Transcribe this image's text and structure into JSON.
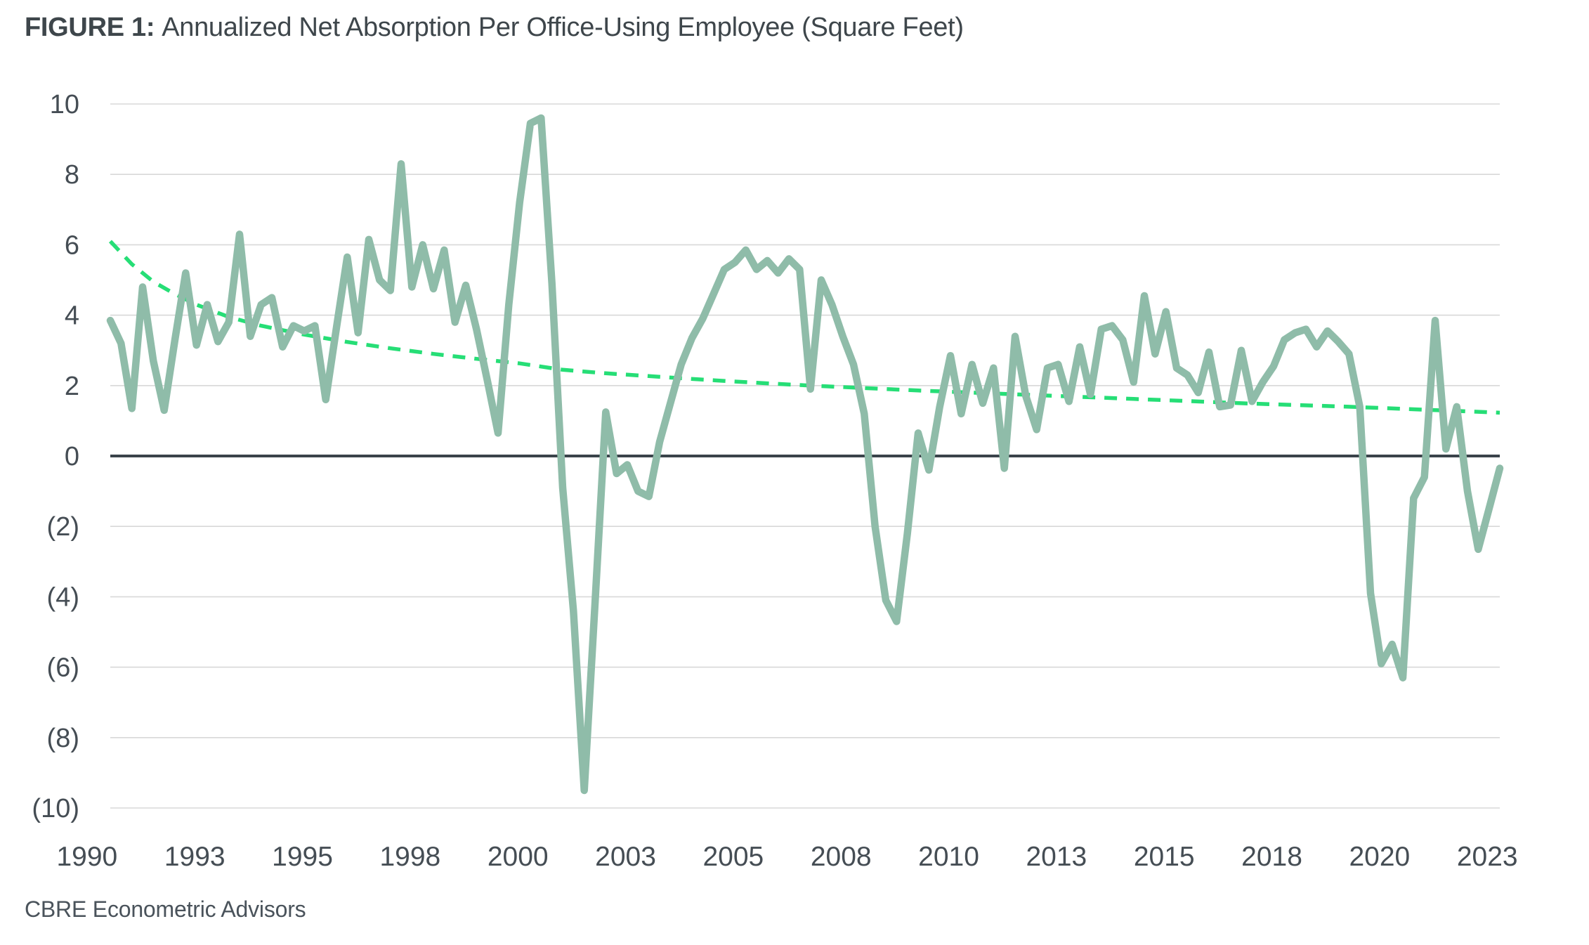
{
  "title": {
    "label": "FIGURE 1:",
    "text": "Annualized Net Absorption Per Office-Using Employee (Square Feet)"
  },
  "source": "CBRE Econometric Advisors",
  "colors": {
    "series_solid": "#8FBCA9",
    "series_trend": "#26DE76",
    "gridline": "#D8D8D8",
    "zero_line": "#3A434A",
    "axis_text": "#454D54",
    "title_text": "#3E464B",
    "source_text": "#4A535B"
  },
  "chart_data": {
    "type": "line",
    "title": "FIGURE 1: Annualized Net Absorption Per Office-Using Employee (Square Feet)",
    "xlabel": "",
    "ylabel": "",
    "frequency": "quarterly",
    "x_range": [
      "1990",
      "2023"
    ],
    "ylim": [
      -10,
      10
    ],
    "grid": true,
    "legend": "none",
    "x_tick_labels": [
      "1990",
      "1993",
      "1995",
      "1998",
      "2000",
      "2003",
      "2005",
      "2008",
      "2010",
      "2013",
      "2015",
      "2018",
      "2020",
      "2023"
    ],
    "y_ticks": [
      10,
      8,
      6,
      4,
      2,
      0,
      -2,
      -4,
      -6,
      -8,
      -10
    ],
    "y_tick_labels": [
      "10",
      "8",
      "6",
      "4",
      "2",
      "0",
      "(2)",
      "(4)",
      "(6)",
      "(8)",
      "(10)"
    ],
    "series": [
      {
        "name": "net-absorption-per-office-using-employee-sf",
        "style": "solid",
        "color": "#8FBCA9",
        "values": [
          3.85,
          3.2,
          1.35,
          4.8,
          2.7,
          1.3,
          3.3,
          5.2,
          3.15,
          4.3,
          3.25,
          3.8,
          6.3,
          3.4,
          4.3,
          4.5,
          3.1,
          3.7,
          3.55,
          3.7,
          1.6,
          3.65,
          5.65,
          3.5,
          6.15,
          5.0,
          4.7,
          8.3,
          4.8,
          6.0,
          4.75,
          5.85,
          3.8,
          4.85,
          3.6,
          2.15,
          0.65,
          4.3,
          7.2,
          9.45,
          9.6,
          4.9,
          -0.9,
          -4.4,
          -9.5,
          -4.2,
          1.25,
          -0.5,
          -0.25,
          -1.0,
          -1.15,
          0.4,
          1.5,
          2.6,
          3.35,
          3.9,
          4.6,
          5.3,
          5.5,
          5.85,
          5.3,
          5.55,
          5.2,
          5.6,
          5.3,
          1.9,
          5.0,
          4.3,
          3.4,
          2.6,
          1.2,
          -2.0,
          -4.1,
          -4.7,
          -2.2,
          0.65,
          -0.4,
          1.4,
          2.85,
          1.2,
          2.6,
          1.5,
          2.5,
          -0.35,
          3.4,
          1.7,
          0.75,
          2.5,
          2.6,
          1.55,
          3.1,
          1.75,
          3.6,
          3.7,
          3.3,
          2.1,
          4.55,
          2.9,
          4.1,
          2.5,
          2.3,
          1.8,
          2.95,
          1.4,
          1.45,
          3.0,
          1.55,
          2.1,
          2.55,
          3.3,
          3.5,
          3.6,
          3.1,
          3.55,
          3.25,
          2.9,
          1.4,
          -3.9,
          -5.9,
          -5.35,
          -6.3,
          -1.2,
          -0.6,
          3.85,
          0.2,
          1.4,
          -1.0,
          -2.65,
          -1.5,
          -0.35
        ]
      },
      {
        "name": "long-term-trend",
        "style": "dashed",
        "color": "#26DE76",
        "points": [
          [
            0,
            6.1
          ],
          [
            2,
            5.45
          ],
          [
            4,
            4.95
          ],
          [
            6,
            4.6
          ],
          [
            8,
            4.3
          ],
          [
            11,
            3.95
          ],
          [
            14,
            3.7
          ],
          [
            18,
            3.45
          ],
          [
            22,
            3.24
          ],
          [
            26,
            3.06
          ],
          [
            30,
            2.9
          ],
          [
            34,
            2.76
          ],
          [
            38,
            2.63
          ],
          [
            42,
            2.45
          ],
          [
            46,
            2.35
          ],
          [
            50,
            2.27
          ],
          [
            55,
            2.17
          ],
          [
            60,
            2.08
          ],
          [
            65,
            2.0
          ],
          [
            70,
            1.93
          ],
          [
            75,
            1.86
          ],
          [
            80,
            1.8
          ],
          [
            85,
            1.74
          ],
          [
            90,
            1.68
          ],
          [
            95,
            1.62
          ],
          [
            100,
            1.56
          ],
          [
            105,
            1.5
          ],
          [
            110,
            1.45
          ],
          [
            115,
            1.4
          ],
          [
            120,
            1.34
          ],
          [
            125,
            1.28
          ],
          [
            129,
            1.23
          ]
        ]
      }
    ]
  }
}
